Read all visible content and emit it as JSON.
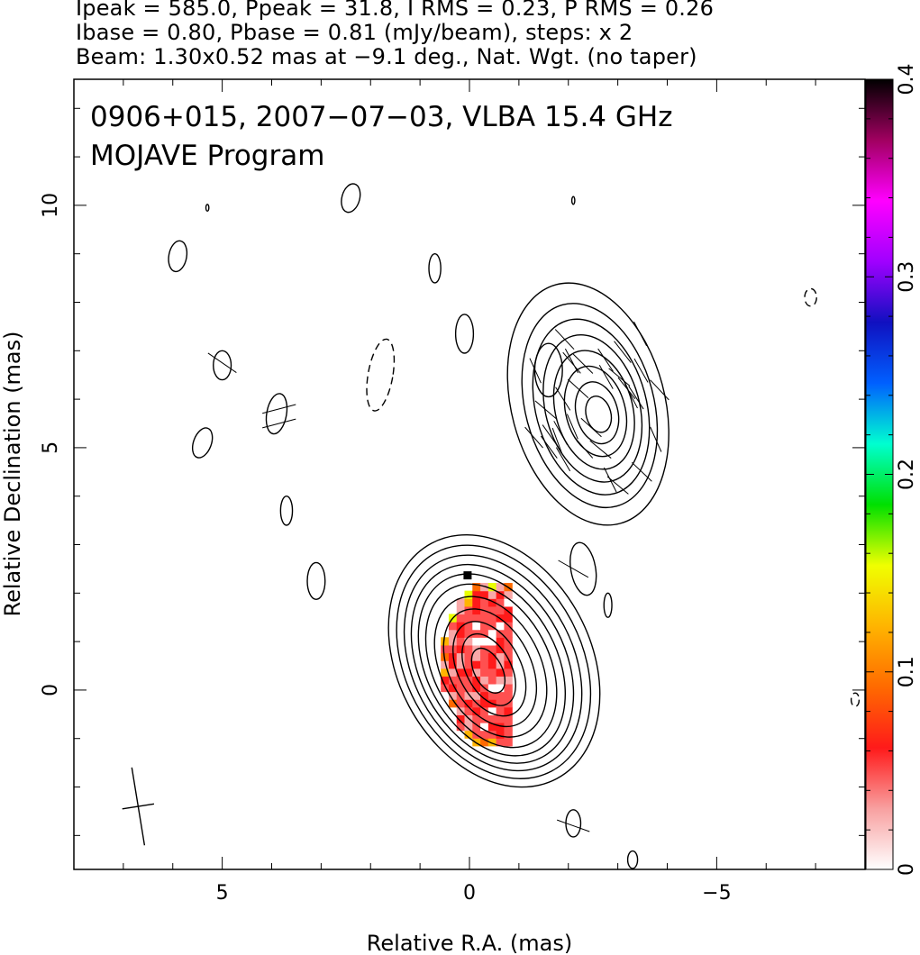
{
  "header": {
    "line1": "Ipeak = 585.0, Ppeak = 31.8, I RMS = 0.23, P RMS = 0.26",
    "line2": "Ibase = 0.80, Pbase = 0.81 (mJy/beam), steps: x 2",
    "line3": "Beam: 1.30x0.52 mas at −9.1 deg., Nat. Wgt. (no taper)"
  },
  "plot": {
    "title_line1": "0906+015, 2007−07−03, VLBA 15.4 GHz",
    "title_line2": "MOJAVE Program",
    "xlabel": "Relative R.A. (mas)",
    "ylabel": "Relative Declination (mas)"
  },
  "colors": {
    "contour": "#000000",
    "colorbar_stops": [
      "#ffffff",
      "#f8a0a0",
      "#ff1a1a",
      "#ff6a00",
      "#ffb400",
      "#f0ff00",
      "#00e000",
      "#00ffd0",
      "#0060ff",
      "#1010c0",
      "#a000ff",
      "#ff00ff",
      "#a00060",
      "#000000"
    ]
  },
  "chart_data": {
    "type": "contour",
    "title": "0906+015, 2007−07−03, VLBA 15.4 GHz",
    "subtitle": "MOJAVE Program",
    "xlabel": "Relative R.A. (mas)",
    "ylabel": "Relative Declination (mas)",
    "xlim": [
      8,
      -8
    ],
    "ylim": [
      -3.7,
      12.6
    ],
    "x_ticks": [
      {
        "value": 5,
        "label": "5"
      },
      {
        "value": 0,
        "label": "0"
      },
      {
        "value": -5,
        "label": "−5"
      }
    ],
    "y_ticks": [
      {
        "value": 0,
        "label": "0"
      },
      {
        "value": 5,
        "label": "5"
      },
      {
        "value": 10,
        "label": "10"
      }
    ],
    "colorbar": {
      "min": 0,
      "max": 0.4,
      "ticks": [
        {
          "value": 0,
          "label": "0"
        },
        {
          "value": 0.1,
          "label": "0.1"
        },
        {
          "value": 0.2,
          "label": "0.2"
        },
        {
          "value": 0.3,
          "label": "0.3"
        },
        {
          "value": 0.4,
          "label": "0.4"
        }
      ]
    },
    "core_component": {
      "center": [
        -0.5,
        0.6
      ],
      "contour_levels": 11
    },
    "jet_component": {
      "center": [
        -2.5,
        5.7
      ],
      "contour_levels": 8
    },
    "beam": {
      "major_mas": 1.3,
      "minor_mas": 0.52,
      "pa_deg": -9.1
    }
  }
}
